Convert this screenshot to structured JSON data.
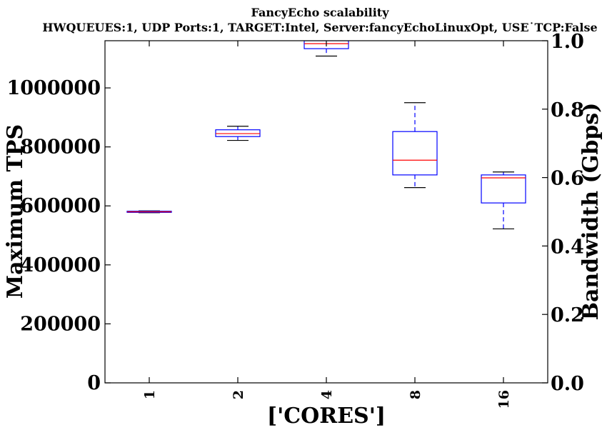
{
  "chart_data": {
    "type": "box",
    "title": "FancyEcho scalability",
    "subtitle": "HWQUEUES:1, UDP Ports:1, TARGET:Intel, Server:fancyEchoLinuxOpt, USE˙TCP:False",
    "xlabel": "['CORES']",
    "ylabel": "Maximum TPS",
    "y2label": "Bandwidth (Gbps)",
    "categories": [
      "1",
      "2",
      "4",
      "8",
      "16"
    ],
    "ylim": [
      0,
      1160000
    ],
    "y2lim": [
      0.0,
      1.0
    ],
    "yticks": [
      "0",
      "200000",
      "400000",
      "600000",
      "800000",
      "1000000"
    ],
    "y2ticks": [
      "0.0",
      "0.2",
      "0.4",
      "0.6",
      "0.8",
      "1.0"
    ],
    "grid": false,
    "box_color": "#0000ff",
    "median_color": "#ff0000",
    "boxes": [
      {
        "category": "1",
        "whisker_low": 577000,
        "q1": 578000,
        "median": 580000,
        "q3": 582000,
        "whisker_high": 583000
      },
      {
        "category": "2",
        "whisker_low": 822000,
        "q1": 835000,
        "median": 845000,
        "q3": 858000,
        "whisker_high": 870000
      },
      {
        "category": "4",
        "whisker_low": 1108000,
        "q1": 1133000,
        "median": 1150000,
        "q3": 1160000,
        "whisker_high": 1172000
      },
      {
        "category": "8",
        "whisker_low": 662000,
        "q1": 705000,
        "median": 755000,
        "q3": 852000,
        "whisker_high": 950000
      },
      {
        "category": "16",
        "whisker_low": 522000,
        "q1": 610000,
        "median": 695000,
        "q3": 705000,
        "whisker_high": 715000
      }
    ]
  }
}
